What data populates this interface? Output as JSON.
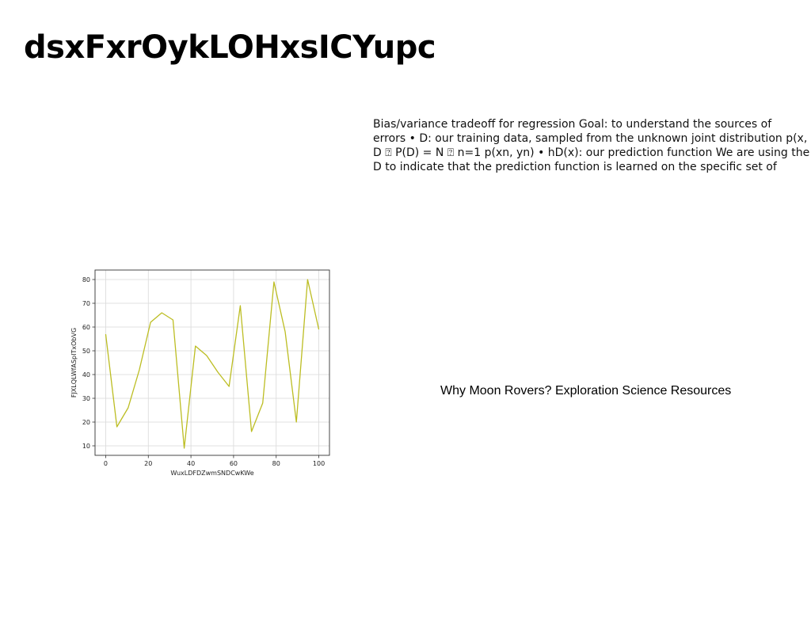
{
  "page": {
    "title": "dsxFxrOykLOHxsICYupc",
    "body_lines": [
      "Bias/variance tradeoff for regression Goal: to understand the sources of",
      "errors • D: our training data, sampled from the unknown joint distribution p(x,",
      "D ⍰ P(D) = N ⍰ n=1 p(xn, yn) • hD(x): our prediction function We are using the",
      "D to indicate that the prediction function is learned on the specific set of"
    ],
    "caption": "Why Moon Rovers? Exploration Science Resources"
  },
  "chart_data": {
    "type": "line",
    "title": "",
    "xlabel": "WuxLDFDZwmSNDCwKWe",
    "ylabel": "FJXLQLWfASpITxObVG",
    "xlim": [
      -5,
      105
    ],
    "ylim": [
      6,
      84
    ],
    "xticks": [
      0,
      20,
      40,
      60,
      80,
      100
    ],
    "yticks": [
      10,
      20,
      30,
      40,
      50,
      60,
      70,
      80
    ],
    "grid": true,
    "line_color": "#bcbd22",
    "series": [
      {
        "x": [
          0,
          5.26,
          10.53,
          15.79,
          21.05,
          26.32,
          31.58,
          36.84,
          42.11,
          47.37,
          52.63,
          57.89,
          63.16,
          68.42,
          73.68,
          78.95,
          84.21,
          89.47,
          94.74,
          100
        ],
        "y": [
          57,
          18,
          26,
          42,
          62,
          66,
          63,
          9,
          52,
          48,
          41,
          35,
          69,
          16,
          28,
          79,
          58,
          20,
          80,
          59
        ]
      }
    ]
  }
}
